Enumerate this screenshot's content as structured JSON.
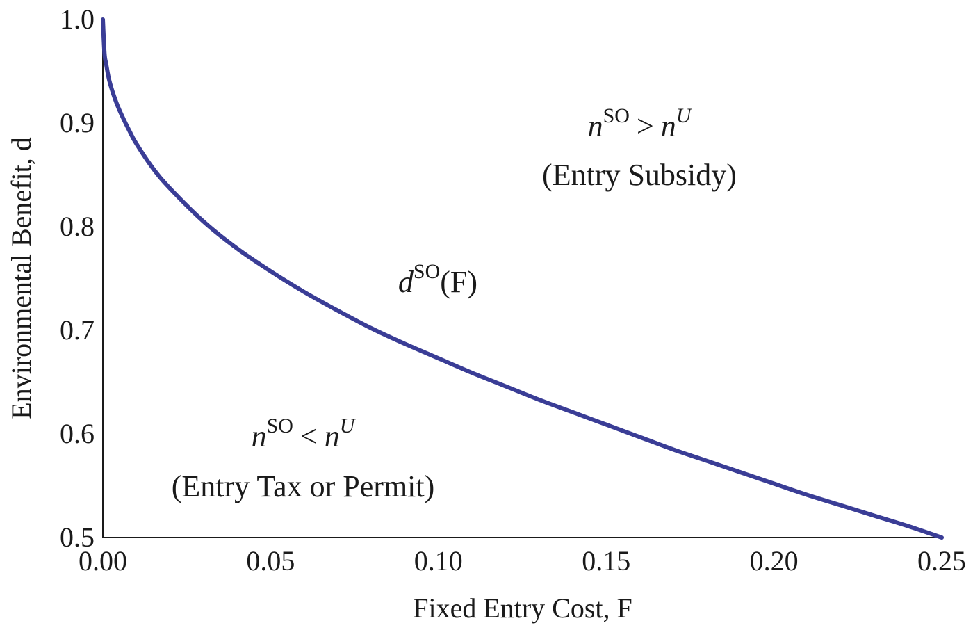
{
  "chart_data": {
    "type": "line",
    "title": "",
    "xlabel": "Fixed Entry Cost, F",
    "ylabel": "Environmental Benefit, d",
    "xlim": [
      0,
      0.25
    ],
    "ylim": [
      0.5,
      1.0
    ],
    "x_ticks": [
      "0.00",
      "0.05",
      "0.10",
      "0.15",
      "0.20",
      "0.25"
    ],
    "y_ticks": [
      "0.5",
      "0.6",
      "0.7",
      "0.8",
      "0.9",
      "1.0"
    ],
    "grid": false,
    "series": [
      {
        "color": "#3a3d96",
        "x": [
          0,
          0.0005,
          0.001,
          0.002,
          0.004,
          0.006,
          0.008,
          0.01,
          0.015,
          0.02,
          0.03,
          0.04,
          0.05,
          0.06,
          0.07,
          0.08,
          0.09,
          0.1,
          0.11,
          0.12,
          0.13,
          0.14,
          0.15,
          0.16,
          0.17,
          0.18,
          0.19,
          0.2,
          0.21,
          0.22,
          0.23,
          0.24,
          0.25
        ],
        "y": [
          1.0,
          0.967,
          0.957,
          0.94,
          0.92,
          0.905,
          0.892,
          0.88,
          0.856,
          0.837,
          0.805,
          0.779,
          0.757,
          0.737,
          0.719,
          0.702,
          0.687,
          0.673,
          0.659,
          0.646,
          0.633,
          0.621,
          0.609,
          0.597,
          0.585,
          0.574,
          0.563,
          0.552,
          0.541,
          0.531,
          0.521,
          0.511,
          0.5
        ]
      }
    ],
    "annotations": {
      "upper_region": {
        "n1": "n",
        "sup1": "SO",
        "op": ">",
        "n2": "n",
        "sup2": "U",
        "label": "(Entry Subsidy)"
      },
      "curve": {
        "d": "d",
        "sup": "SO",
        "arg": "(F)"
      },
      "lower_region": {
        "n1": "n",
        "sup1": "SO",
        "op": "<",
        "n2": "n",
        "sup2": "U",
        "label": "(Entry Tax or Permit)"
      }
    }
  }
}
